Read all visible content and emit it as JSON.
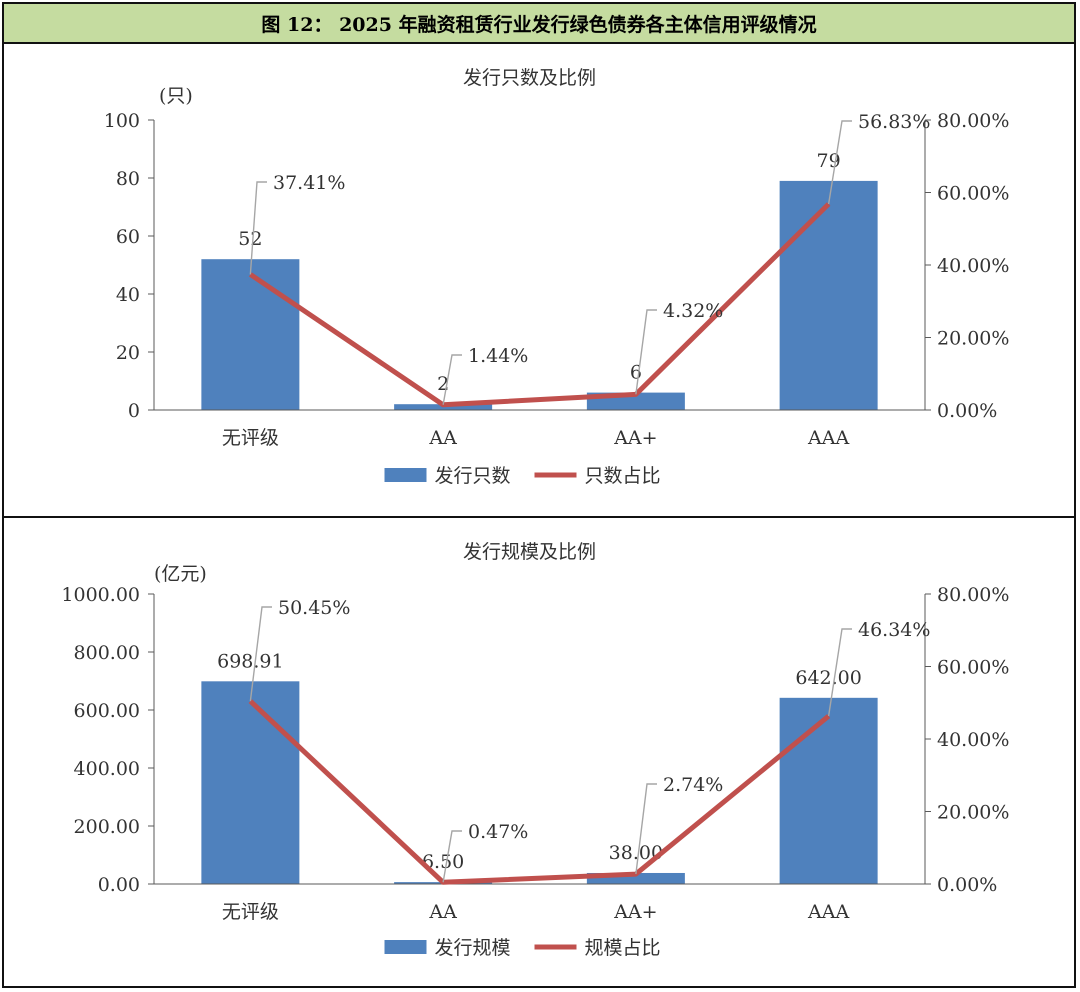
{
  "header": {
    "title": "图 12：  2025 年融资租赁行业发行绿色债券各主体信用评级情况"
  },
  "colors": {
    "bar": "#4f81bd",
    "line": "#c0504d",
    "header_bg": "#c5dca0",
    "leader": "#a6a6a6"
  },
  "chart_data": [
    {
      "type": "bar",
      "title": "发行只数及比例",
      "y_unit": "(只)",
      "categories": [
        "无评级",
        "AA",
        "AA+",
        "AAA"
      ],
      "series": [
        {
          "name": "发行只数",
          "type": "bar",
          "axis": "left",
          "values": [
            52,
            2,
            6,
            79
          ],
          "labels": [
            "52",
            "2",
            "6",
            "79"
          ]
        },
        {
          "name": "只数占比",
          "type": "line",
          "axis": "right",
          "values": [
            37.41,
            1.44,
            4.32,
            56.83
          ],
          "labels": [
            "37.41%",
            "1.44%",
            "4.32%",
            "56.83%"
          ]
        }
      ],
      "ylim_left": [
        0,
        100
      ],
      "yticks_left": [
        "0",
        "20",
        "40",
        "60",
        "80",
        "100"
      ],
      "ylim_right": [
        0,
        80
      ],
      "yticks_right": [
        "0.00%",
        "20.00%",
        "40.00%",
        "60.00%",
        "80.00%"
      ],
      "grid": false,
      "legend": "bottom-center"
    },
    {
      "type": "bar",
      "title": "发行规模及比例",
      "y_unit": "(亿元)",
      "categories": [
        "无评级",
        "AA",
        "AA+",
        "AAA"
      ],
      "series": [
        {
          "name": "发行规模",
          "type": "bar",
          "axis": "left",
          "values": [
            698.91,
            6.5,
            38.0,
            642.0
          ],
          "labels": [
            "698.91",
            "6.50",
            "38.00",
            "642.00"
          ]
        },
        {
          "name": "规模占比",
          "type": "line",
          "axis": "right",
          "values": [
            50.45,
            0.47,
            2.74,
            46.34
          ],
          "labels": [
            "50.45%",
            "0.47%",
            "2.74%",
            "46.34%"
          ]
        }
      ],
      "ylim_left": [
        0,
        1000
      ],
      "yticks_left": [
        "0.00",
        "200.00",
        "400.00",
        "600.00",
        "800.00",
        "1000.00"
      ],
      "ylim_right": [
        0,
        80
      ],
      "yticks_right": [
        "0.00%",
        "20.00%",
        "40.00%",
        "60.00%",
        "80.00%"
      ],
      "grid": false,
      "legend": "bottom-center"
    }
  ]
}
